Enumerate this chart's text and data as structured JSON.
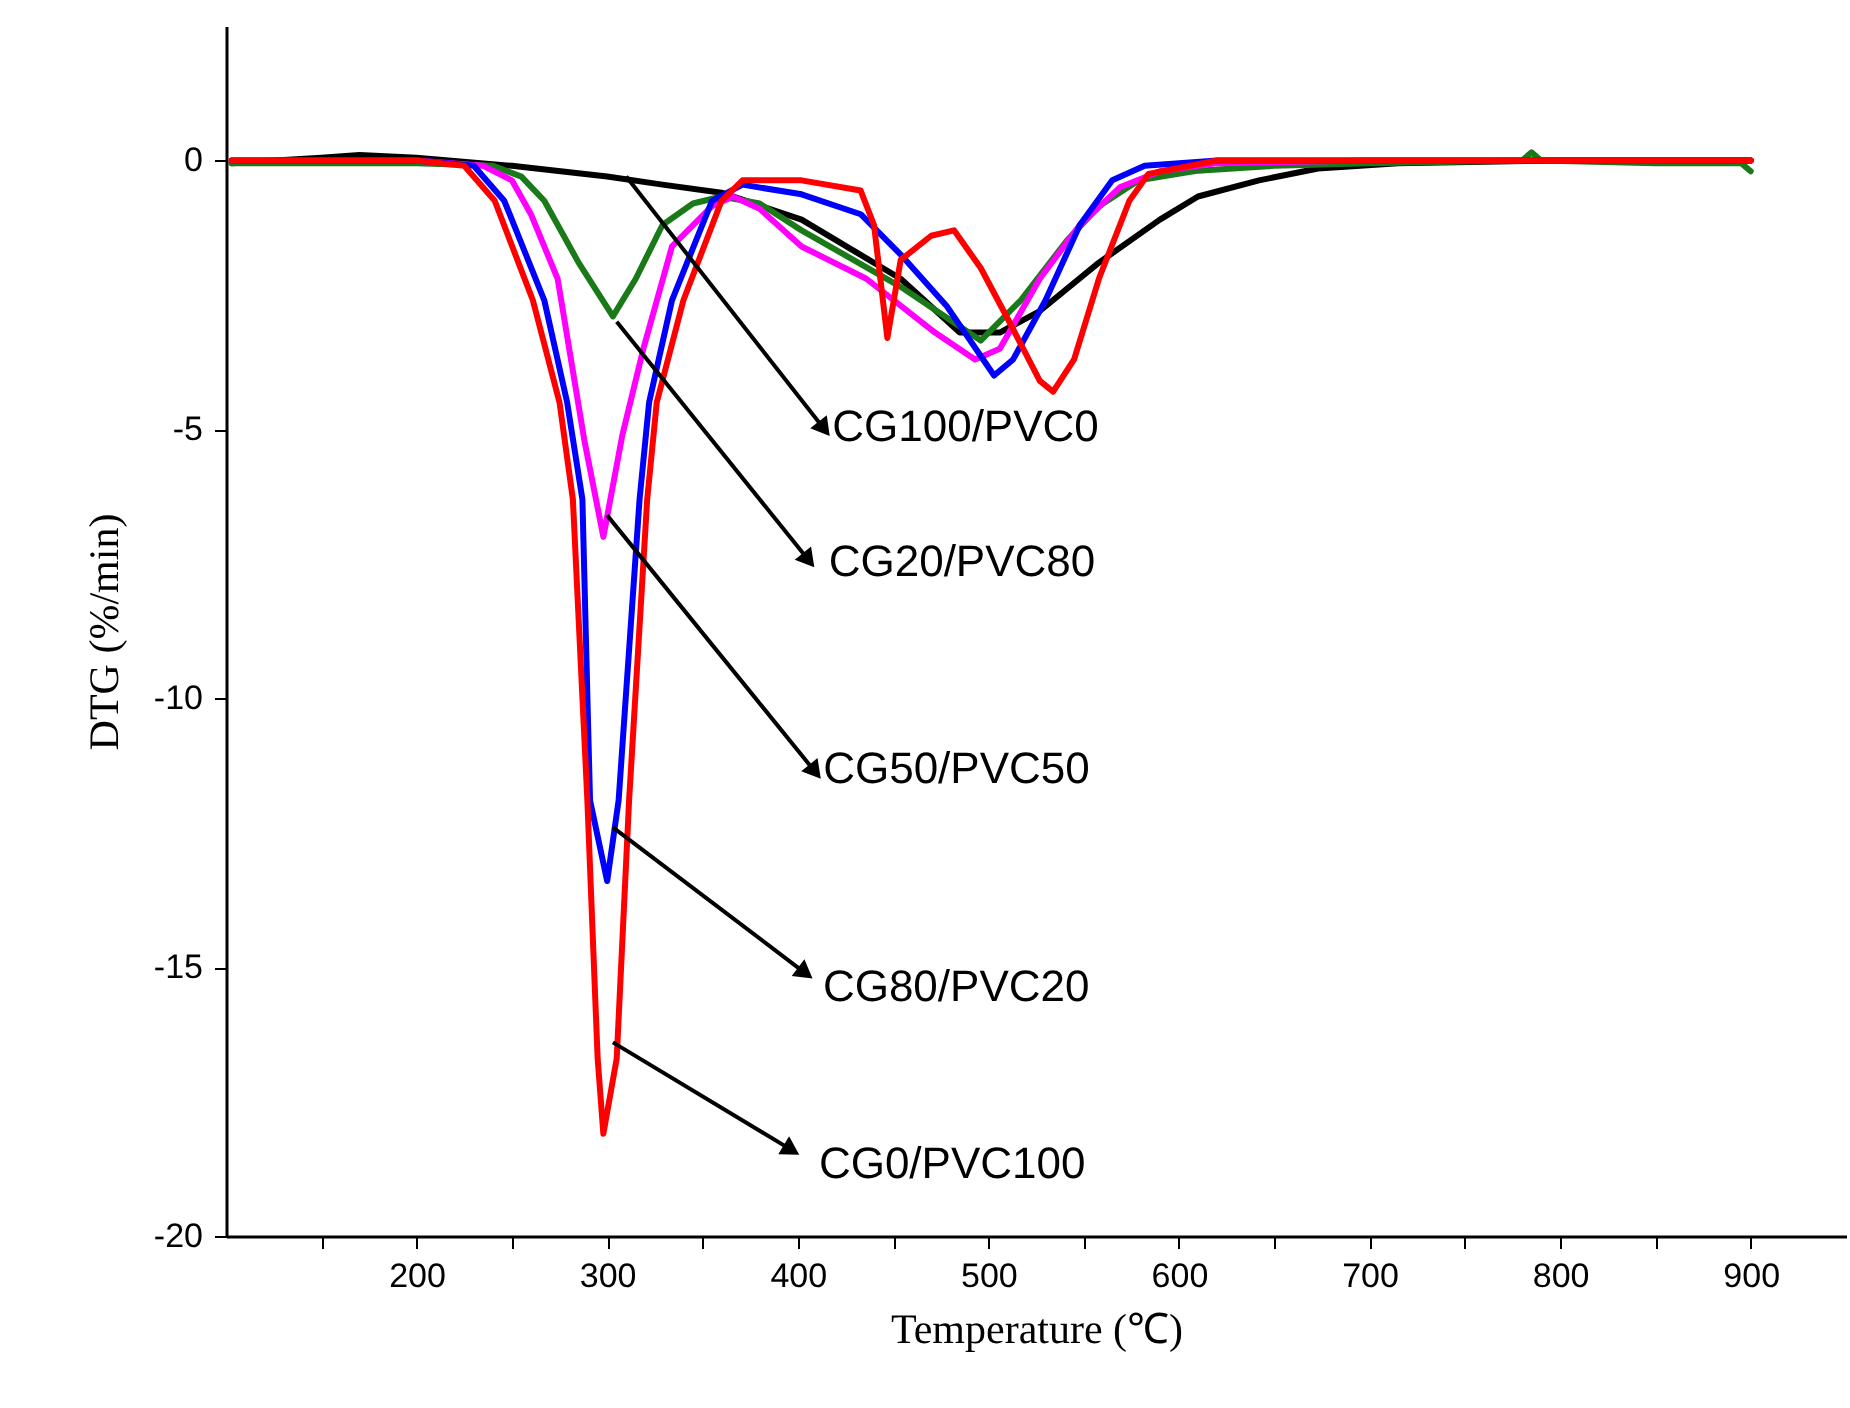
{
  "chart_data": {
    "type": "line",
    "xlabel": "Temperature (℃)",
    "ylabel": "DTG (%/min)",
    "xlim": [
      100,
      950
    ],
    "ylim": [
      -20,
      2.5
    ],
    "xticks": [
      {
        "value": 150,
        "label": null
      },
      200,
      {
        "value": 250,
        "label": null
      },
      300,
      {
        "value": 350,
        "label": null
      },
      400,
      {
        "value": 450,
        "label": null
      },
      500,
      {
        "value": 550,
        "label": null
      },
      600,
      {
        "value": 650,
        "label": null
      },
      700,
      {
        "value": 750,
        "label": null
      },
      800,
      {
        "value": 850,
        "label": null
      },
      900
    ],
    "yticks": [
      0,
      -5,
      -10,
      -15,
      -20
    ],
    "grid": false,
    "marker": "none",
    "line_style": "solid",
    "series": [
      {
        "color": "#000000",
        "x": [
          103,
          150,
          170,
          200,
          250,
          300,
          329,
          360,
          402,
          454,
          485,
          506,
          527,
          558,
          590,
          610,
          642,
          673,
          715,
          800,
          900
        ],
        "values": [
          -0.05,
          0.05,
          0.1,
          0.05,
          -0.1,
          -0.3,
          -0.45,
          -0.6,
          -1.1,
          -2.2,
          -3.2,
          -3.2,
          -2.8,
          -1.9,
          -1.1,
          -0.67,
          -0.37,
          -0.15,
          -0.05,
          0,
          0
        ]
      },
      {
        "color": "#1a7a1a",
        "x": [
          103,
          200,
          240,
          255,
          267,
          285,
          303,
          315,
          329,
          345,
          360,
          380,
          402,
          454,
          496,
          517,
          541,
          558,
          579,
          610,
          650,
          700,
          780,
          785,
          790,
          850,
          895,
          900
        ],
        "values": [
          -0.05,
          -0.05,
          -0.1,
          -0.3,
          -0.75,
          -1.9,
          -2.9,
          -2.2,
          -1.2,
          -0.8,
          -0.67,
          -0.8,
          -1.3,
          -2.35,
          -3.35,
          -2.6,
          -1.5,
          -0.85,
          -0.37,
          -0.19,
          -0.1,
          -0.05,
          0,
          0.15,
          0,
          -0.05,
          -0.05,
          -0.2
        ]
      },
      {
        "color": "#ff00ff",
        "x": [
          103,
          200,
          235,
          250,
          260,
          274,
          288,
          298,
          308,
          319,
          334,
          355,
          366,
          380,
          402,
          436,
          472,
          493,
          506,
          527,
          548,
          569,
          590,
          620,
          700,
          900
        ],
        "values": [
          0,
          0,
          -0.1,
          -0.37,
          -1,
          -2.2,
          -5.2,
          -7.0,
          -5.1,
          -3.5,
          -1.6,
          -0.85,
          -0.67,
          -0.9,
          -1.6,
          -2.2,
          -3.2,
          -3.7,
          -3.5,
          -2.2,
          -1.2,
          -0.5,
          -0.2,
          -0.05,
          0,
          0
        ]
      },
      {
        "color": "#0000ff",
        "x": [
          103,
          200,
          230,
          246,
          267,
          279,
          287,
          291,
          300,
          306,
          317,
          322,
          334,
          355,
          371,
          402,
          433,
          454,
          478,
          503,
          513,
          530,
          548,
          565,
          582,
          620,
          900
        ],
        "values": [
          0,
          0,
          -0.1,
          -0.75,
          -2.6,
          -4.5,
          -6.3,
          -11.9,
          -13.4,
          -11.9,
          -6.3,
          -4.5,
          -2.6,
          -0.75,
          -0.45,
          -0.63,
          -1.0,
          -1.75,
          -2.7,
          -4.0,
          -3.7,
          -2.6,
          -1.2,
          -0.37,
          -0.1,
          0,
          0
        ]
      },
      {
        "color": "#ff0000",
        "x": [
          103,
          200,
          225,
          241,
          261,
          275,
          282,
          289.6,
          295,
          298,
          305,
          311.5,
          321,
          326,
          340,
          360,
          371,
          402,
          433,
          440,
          447,
          454,
          470,
          482,
          496,
          511,
          527,
          534,
          545,
          558,
          574,
          584,
          620,
          900
        ],
        "values": [
          0,
          0,
          -0.1,
          -0.75,
          -2.6,
          -4.5,
          -6.3,
          -11.9,
          -16.7,
          -18.1,
          -16.7,
          -11.9,
          -6.3,
          -4.5,
          -2.6,
          -0.75,
          -0.37,
          -0.37,
          -0.56,
          -1.2,
          -3.3,
          -1.85,
          -1.4,
          -1.3,
          -2.0,
          -3.0,
          -4.1,
          -4.3,
          -3.7,
          -2.2,
          -0.75,
          -0.25,
          0,
          0
        ]
      }
    ],
    "annotations": [
      {
        "text": "CG100/PVC0",
        "x": 310,
        "y": -0.3
      },
      {
        "text": "CG20/PVC80",
        "x": 305,
        "y": -3.0
      },
      {
        "text": "CG50/PVC50",
        "x": 300,
        "y": -6.6
      },
      {
        "text": "CG80/PVC20",
        "x": 303,
        "y": -12.4
      },
      {
        "text": "CG0/PVC100",
        "x": 303,
        "y": -16.4
      }
    ]
  }
}
